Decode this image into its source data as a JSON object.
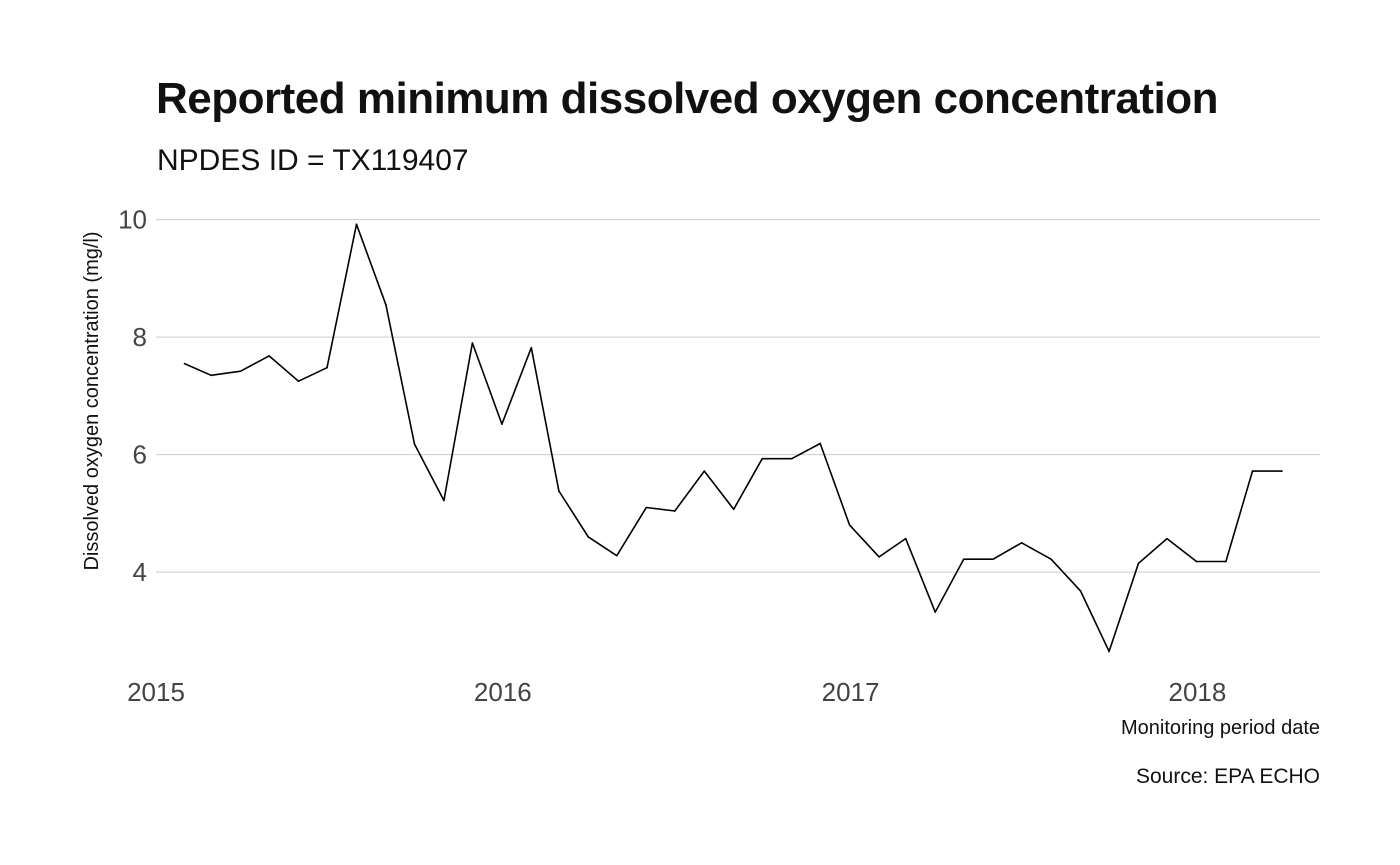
{
  "chart_data": {
    "type": "line",
    "title": "Reported minimum dissolved oxygen concentration",
    "subtitle": "NPDES ID = TX119407",
    "xlabel": "Monitoring period date",
    "ylabel": "Dissolved oxygen concentration (mg/l)",
    "caption": "Source: EPA ECHO",
    "x_ticks": [
      "2015",
      "2016",
      "2017",
      "2018"
    ],
    "y_ticks": [
      "4",
      "6",
      "8",
      "10"
    ],
    "ylim": [
      2.3,
      10.3
    ],
    "xlim": [
      "2015-01-01",
      "2018-05-10"
    ],
    "grid": "horizontal",
    "line_color": "#000000",
    "x": [
      "2015-01-31",
      "2015-02-28",
      "2015-03-31",
      "2015-04-30",
      "2015-05-31",
      "2015-06-30",
      "2015-07-31",
      "2015-08-31",
      "2015-09-30",
      "2015-10-31",
      "2015-11-30",
      "2015-12-31",
      "2016-01-31",
      "2016-02-29",
      "2016-03-31",
      "2016-04-30",
      "2016-05-31",
      "2016-06-30",
      "2016-07-31",
      "2016-08-31",
      "2016-09-30",
      "2016-10-31",
      "2016-11-30",
      "2016-12-31",
      "2017-01-31",
      "2017-02-28",
      "2017-03-31",
      "2017-04-30",
      "2017-05-31",
      "2017-06-30",
      "2017-07-31",
      "2017-08-31",
      "2017-09-30",
      "2017-10-31",
      "2017-11-30",
      "2017-12-31",
      "2018-01-31",
      "2018-02-28",
      "2018-03-31"
    ],
    "y": [
      7.55,
      7.35,
      7.42,
      7.68,
      7.25,
      7.48,
      9.92,
      8.55,
      6.18,
      5.22,
      7.9,
      6.52,
      7.82,
      5.38,
      4.6,
      4.28,
      5.1,
      5.04,
      5.72,
      5.07,
      5.93,
      5.93,
      6.19,
      4.8,
      4.26,
      4.57,
      3.32,
      4.22,
      4.22,
      4.5,
      4.22,
      3.68,
      2.65,
      4.15,
      4.57,
      4.18,
      4.18,
      5.72,
      5.72
    ]
  }
}
